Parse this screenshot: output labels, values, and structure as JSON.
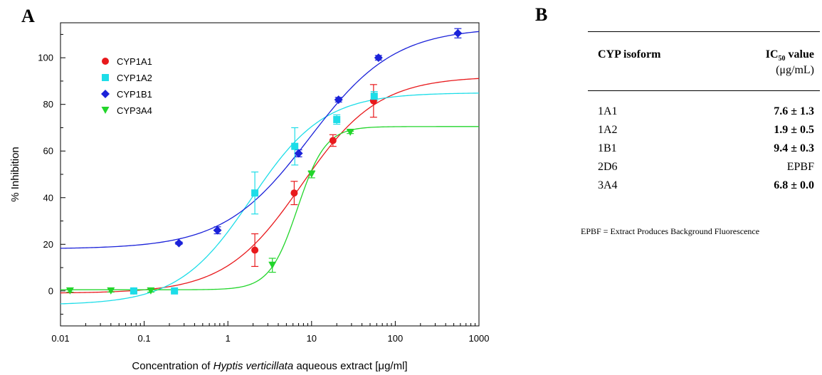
{
  "panel_a_letter": "A",
  "panel_b_letter": "B",
  "chart_data": {
    "type": "scatter",
    "xlabel_parts": [
      "Concentration of ",
      "Hyptis verticillata",
      " aqueous extract [μg/ml]"
    ],
    "ylabel": "% Inhibition",
    "xscale": "log",
    "xlim": [
      0.01,
      1000
    ],
    "ylim": [
      -15,
      115
    ],
    "x_ticks": [
      0.01,
      0.1,
      1,
      10,
      100,
      1000
    ],
    "x_tick_labels": [
      "0.01",
      "0.1",
      "1",
      "10",
      "100",
      "1000"
    ],
    "y_ticks": [
      0,
      20,
      40,
      60,
      80,
      100
    ],
    "y_tick_labels": [
      "0",
      "20",
      "40",
      "60",
      "80",
      "100"
    ],
    "legend_position": "top-left",
    "series": [
      {
        "name": "CYP1A1",
        "color": "#e8191c",
        "marker": "circle",
        "points": [
          {
            "x": 0.075,
            "y": 0,
            "err": 1
          },
          {
            "x": 2.1,
            "y": 17.5,
            "err": 7
          },
          {
            "x": 6.2,
            "y": 42,
            "err": 5
          },
          {
            "x": 18,
            "y": 64.5,
            "err": 2.5
          },
          {
            "x": 55,
            "y": 81.5,
            "err": 7
          }
        ],
        "curve": {
          "bottom": -1,
          "top": 92,
          "ec50": 7.6,
          "hill": 0.95
        }
      },
      {
        "name": "CYP1A2",
        "color": "#1ddde8",
        "marker": "square",
        "points": [
          {
            "x": 0.075,
            "y": 0,
            "err": 0.5
          },
          {
            "x": 0.23,
            "y": 0,
            "err": 0.5
          },
          {
            "x": 2.1,
            "y": 42,
            "err": 9
          },
          {
            "x": 6.3,
            "y": 62,
            "err": 8
          },
          {
            "x": 20,
            "y": 73.5,
            "err": 2
          },
          {
            "x": 56,
            "y": 83.5,
            "err": 2
          }
        ],
        "curve": {
          "bottom": -6,
          "top": 85,
          "ec50": 1.9,
          "hill": 1.0
        }
      },
      {
        "name": "CYP1B1",
        "color": "#1b22d9",
        "marker": "diamond",
        "points": [
          {
            "x": 0.26,
            "y": 20.5,
            "err": 0.5
          },
          {
            "x": 0.75,
            "y": 26,
            "err": 1.5
          },
          {
            "x": 7,
            "y": 59,
            "err": 1.5
          },
          {
            "x": 21,
            "y": 82,
            "err": 1
          },
          {
            "x": 63,
            "y": 100,
            "err": 1
          },
          {
            "x": 560,
            "y": 110.5,
            "err": 2
          }
        ],
        "curve": {
          "bottom": 18,
          "top": 113,
          "ec50": 9.4,
          "hill": 0.85
        }
      },
      {
        "name": "CYP3A4",
        "color": "#22d52b",
        "marker": "triangle-down",
        "points": [
          {
            "x": 0.013,
            "y": 0,
            "err": 0.5
          },
          {
            "x": 0.04,
            "y": 0,
            "err": 0.5
          },
          {
            "x": 0.12,
            "y": 0,
            "err": 0.5
          },
          {
            "x": 3.4,
            "y": 11,
            "err": 3
          },
          {
            "x": 10,
            "y": 50,
            "err": 1.5
          },
          {
            "x": 29,
            "y": 68,
            "err": 0.5
          }
        ],
        "curve": {
          "bottom": 0.5,
          "top": 70.5,
          "ec50": 6.8,
          "hill": 2.6
        }
      }
    ]
  },
  "table": {
    "col1_header": "CYP isoform",
    "col2_header_main": "IC",
    "col2_header_sub": "50",
    "col2_header_rest": " value",
    "col2_header_unit": "(μg/mL)",
    "rows": [
      {
        "isoform": "1A1",
        "value": "7.6 ± 1.3",
        "bold": true
      },
      {
        "isoform": "1A2",
        "value": "1.9 ± 0.5",
        "bold": true
      },
      {
        "isoform": "1B1",
        "value": "9.4 ± 0.3",
        "bold": true
      },
      {
        "isoform": "2D6",
        "value": "EPBF",
        "bold": false
      },
      {
        "isoform": "3A4",
        "value": "6.8 ± 0.0",
        "bold": true
      }
    ],
    "footnote": "EPBF = Extract Produces Background Fluorescence"
  }
}
